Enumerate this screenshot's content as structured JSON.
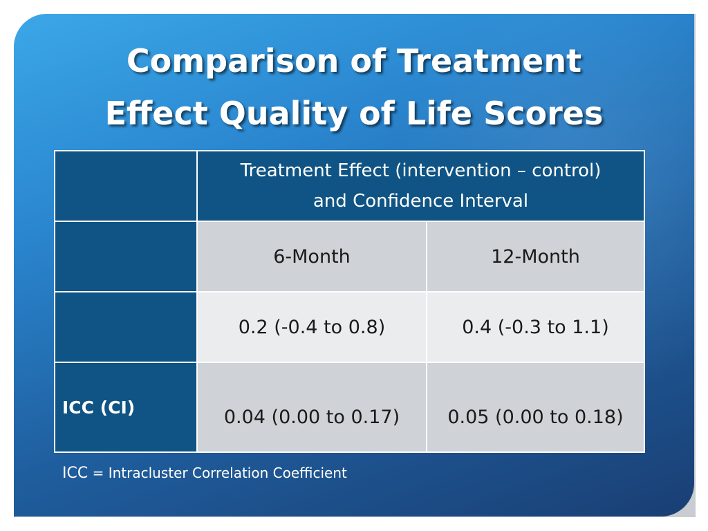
{
  "slide": {
    "title_line1": "Comparison of Treatment",
    "title_line2": "Effect  Quality of Life Scores"
  },
  "table": {
    "header": {
      "line1": "Treatment Effect  (intervention – control)",
      "line2": "and Confidence Interval"
    },
    "periods": [
      "6-Month",
      "12-Month"
    ],
    "treatment_effect": [
      "0.2 (-0.4 to 0.8)",
      "0.4 (-0.3 to 1.1)"
    ],
    "icc_label": "ICC (CI)",
    "icc": [
      "0.04 (0.00 to 0.17)",
      "0.05 (0.00 to 0.18)"
    ]
  },
  "footnote": {
    "abbr": "ICC",
    "separator": "=",
    "definition": "Intracluster Correlation Coefficient"
  },
  "colors": {
    "navy_cell": "#0f5484",
    "grey_cell": "#cfd2d6",
    "light_cell": "#ebecee"
  }
}
